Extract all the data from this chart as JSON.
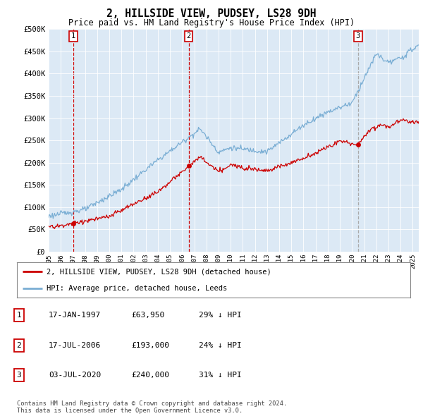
{
  "title": "2, HILLSIDE VIEW, PUDSEY, LS28 9DH",
  "subtitle": "Price paid vs. HM Land Registry's House Price Index (HPI)",
  "plot_bg_color": "#dce9f5",
  "hpi_color": "#7aaed4",
  "price_color": "#cc0000",
  "ylim": [
    0,
    500000
  ],
  "yticks": [
    0,
    50000,
    100000,
    150000,
    200000,
    250000,
    300000,
    350000,
    400000,
    450000,
    500000
  ],
  "ytick_labels": [
    "£0",
    "£50K",
    "£100K",
    "£150K",
    "£200K",
    "£250K",
    "£300K",
    "£350K",
    "£400K",
    "£450K",
    "£500K"
  ],
  "sale_dates": [
    1997.04,
    2006.54,
    2020.5
  ],
  "sale_prices": [
    63950,
    193000,
    240000
  ],
  "sale_labels": [
    "1",
    "2",
    "3"
  ],
  "vline_colors": [
    "#cc0000",
    "#cc0000",
    "#aaaaaa"
  ],
  "legend_entries": [
    "2, HILLSIDE VIEW, PUDSEY, LS28 9DH (detached house)",
    "HPI: Average price, detached house, Leeds"
  ],
  "table_rows": [
    [
      "1",
      "17-JAN-1997",
      "£63,950",
      "29% ↓ HPI"
    ],
    [
      "2",
      "17-JUL-2006",
      "£193,000",
      "24% ↓ HPI"
    ],
    [
      "3",
      "03-JUL-2020",
      "£240,000",
      "31% ↓ HPI"
    ]
  ],
  "footer": "Contains HM Land Registry data © Crown copyright and database right 2024.\nThis data is licensed under the Open Government Licence v3.0.",
  "xmin": 1995.0,
  "xmax": 2025.5
}
